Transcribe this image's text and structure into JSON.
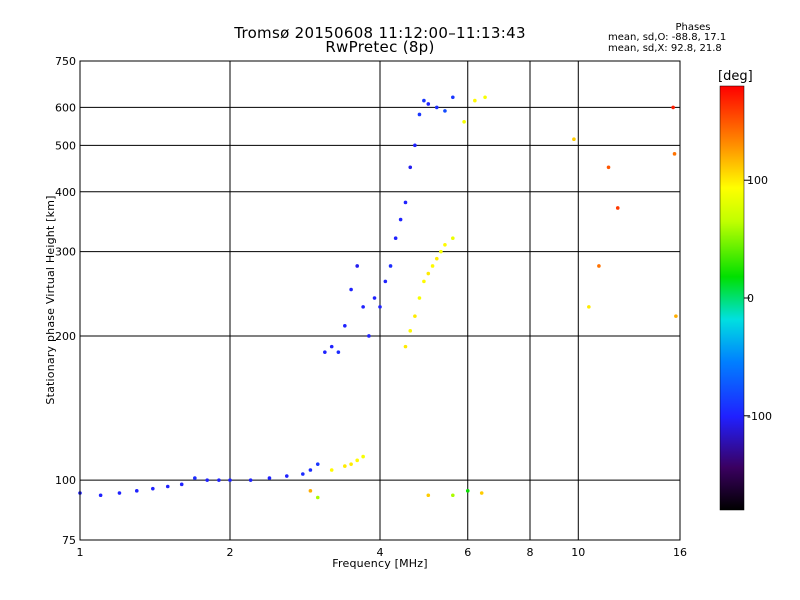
{
  "chart_data": {
    "type": "scatter",
    "title": "Tromsø 20150608 11:12:00–11:13:43",
    "subtitle": "RwPretec (8p)",
    "xlabel": "Frequency [MHz]",
    "ylabel": "Stationary phase Virtual Height [km]",
    "x_scale": "log",
    "y_scale": "log",
    "xlim": [
      1,
      16
    ],
    "ylim": [
      75,
      750
    ],
    "x_ticks": [
      1,
      2,
      4,
      6,
      8,
      10,
      16
    ],
    "y_ticks": [
      75,
      100,
      200,
      300,
      400,
      500,
      600,
      750
    ],
    "grid": true,
    "legend": {
      "title": "Phases",
      "lines": [
        "mean, sd,O: -88.8, 17.1",
        "mean, sd,X:  92.8, 21.8"
      ],
      "placement": "top-right"
    },
    "colorbar": {
      "label": "[deg]",
      "range": [
        -180,
        180
      ],
      "ticks": [
        -100,
        0,
        100
      ]
    },
    "series": [
      {
        "x": [
          1.0,
          1.1,
          1.2,
          1.3,
          1.4,
          1.5,
          1.6,
          1.7,
          1.8,
          1.9,
          2.0,
          2.2,
          2.4,
          2.6,
          2.8,
          2.9,
          3.0
        ],
        "y": [
          94,
          93,
          94,
          95,
          96,
          97,
          98,
          101,
          100,
          100,
          100,
          100,
          101,
          102,
          103,
          105,
          108
        ],
        "phase": [
          -100,
          -100,
          -100,
          -100,
          -100,
          -100,
          -100,
          -95,
          -100,
          -100,
          -100,
          -100,
          -100,
          -100,
          -95,
          -95,
          -90
        ]
      },
      {
        "x": [
          3.1,
          3.2,
          3.3,
          3.4,
          3.5,
          3.6,
          3.7,
          3.8,
          3.9,
          4.0,
          4.1,
          4.2,
          4.3,
          4.4,
          4.5,
          4.6,
          4.7,
          4.8,
          4.9,
          5.0,
          5.2,
          5.4,
          5.6
        ],
        "y": [
          185,
          190,
          185,
          210,
          250,
          280,
          230,
          200,
          240,
          230,
          260,
          280,
          320,
          350,
          380,
          450,
          500,
          580,
          620,
          610,
          600,
          590,
          630
        ],
        "phase": [
          -100,
          -100,
          -95,
          -100,
          -100,
          -105,
          -100,
          -100,
          -100,
          -100,
          -100,
          -95,
          -100,
          -100,
          -100,
          -105,
          -100,
          -90,
          -90,
          -100,
          -95,
          -80,
          -90
        ]
      },
      {
        "x": [
          3.2,
          3.4,
          3.5,
          3.6,
          3.7,
          4.5,
          4.6,
          4.7,
          4.8,
          4.9,
          5.0,
          5.1,
          5.2,
          5.3,
          5.4,
          5.6,
          5.9,
          6.2,
          6.5
        ],
        "y": [
          105,
          107,
          108,
          110,
          112,
          190,
          205,
          220,
          240,
          260,
          270,
          280,
          290,
          300,
          310,
          320,
          560,
          620,
          630
        ],
        "phase": [
          95,
          100,
          100,
          95,
          90,
          100,
          95,
          100,
          90,
          95,
          100,
          95,
          100,
          90,
          95,
          85,
          90,
          95,
          90
        ]
      },
      {
        "x": [
          2.9,
          3.0,
          5.0,
          5.6,
          6.0,
          6.4,
          9.8,
          10.5,
          11.0,
          11.5,
          12.0,
          15.5,
          15.6,
          15.7
        ],
        "y": [
          95,
          92,
          93,
          93,
          95,
          94,
          515,
          230,
          280,
          450,
          370,
          600,
          480,
          220
        ],
        "phase": [
          120,
          60,
          110,
          60,
          20,
          110,
          110,
          100,
          140,
          150,
          160,
          170,
          140,
          120
        ]
      }
    ]
  }
}
